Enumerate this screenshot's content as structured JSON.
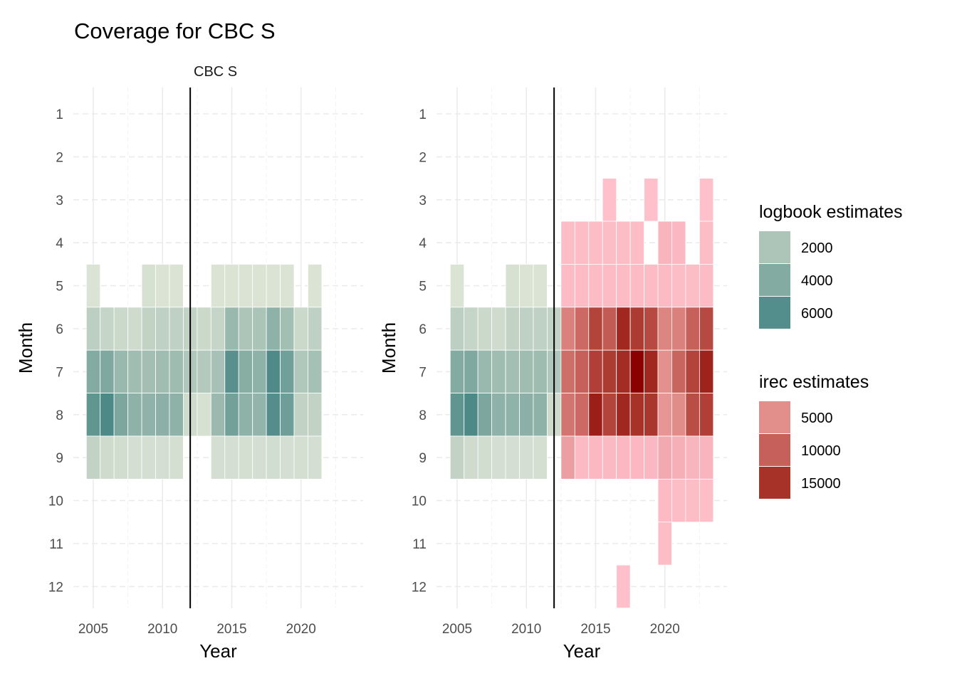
{
  "title": "Coverage for CBC S",
  "facet_label": "CBC S",
  "legends": {
    "logbook": {
      "title": "logbook estimates",
      "labels": [
        "2000",
        "4000",
        "6000"
      ],
      "colors": [
        "#adc5b9",
        "#84aba2",
        "#548e8c"
      ]
    },
    "irec": {
      "title": "irec estimates",
      "labels": [
        "5000",
        "10000",
        "15000"
      ],
      "colors": [
        "#e28f8c",
        "#c6605a",
        "#a63228"
      ]
    }
  },
  "chart_data": [
    {
      "type": "heatmap",
      "panel": "left",
      "facet": "CBC S",
      "xlabel": "Year",
      "ylabel": "Month",
      "x_ticks": [
        2005,
        2010,
        2015,
        2020
      ],
      "y_ticks": [
        1,
        2,
        3,
        4,
        5,
        6,
        7,
        8,
        9,
        10,
        11,
        12
      ],
      "y_reversed": true,
      "vline_year": 2012,
      "series": [
        {
          "name": "logbook estimates",
          "cells": [
            [
              2005,
              5,
              500
            ],
            [
              2005,
              6,
              1500
            ],
            [
              2005,
              7,
              4000
            ],
            [
              2005,
              8,
              5500
            ],
            [
              2005,
              9,
              1300
            ],
            [
              2006,
              6,
              1200
            ],
            [
              2006,
              7,
              4200
            ],
            [
              2006,
              8,
              6300
            ],
            [
              2006,
              9,
              900
            ],
            [
              2007,
              6,
              1000
            ],
            [
              2007,
              7,
              3000
            ],
            [
              2007,
              8,
              4300
            ],
            [
              2007,
              9,
              800
            ],
            [
              2008,
              6,
              900
            ],
            [
              2008,
              7,
              2600
            ],
            [
              2008,
              8,
              3500
            ],
            [
              2008,
              9,
              700
            ],
            [
              2009,
              5,
              600
            ],
            [
              2009,
              6,
              1300
            ],
            [
              2009,
              7,
              2500
            ],
            [
              2009,
              8,
              3400
            ],
            [
              2009,
              9,
              700
            ],
            [
              2010,
              5,
              500
            ],
            [
              2010,
              6,
              1400
            ],
            [
              2010,
              7,
              2600
            ],
            [
              2010,
              8,
              3600
            ],
            [
              2010,
              9,
              700
            ],
            [
              2011,
              5,
              500
            ],
            [
              2011,
              6,
              1400
            ],
            [
              2011,
              7,
              2700
            ],
            [
              2011,
              8,
              3500
            ],
            [
              2011,
              9,
              700
            ],
            [
              2012,
              6,
              1300
            ],
            [
              2012,
              7,
              1900
            ],
            [
              2012,
              8,
              900
            ],
            [
              2013,
              6,
              1000
            ],
            [
              2013,
              7,
              1800
            ],
            [
              2013,
              8,
              600
            ],
            [
              2014,
              5,
              500
            ],
            [
              2014,
              6,
              1200
            ],
            [
              2014,
              7,
              2300
            ],
            [
              2014,
              8,
              2900
            ],
            [
              2014,
              9,
              700
            ],
            [
              2015,
              5,
              500
            ],
            [
              2015,
              6,
              3000
            ],
            [
              2015,
              7,
              5800
            ],
            [
              2015,
              8,
              4700
            ],
            [
              2015,
              9,
              700
            ],
            [
              2016,
              5,
              500
            ],
            [
              2016,
              6,
              2000
            ],
            [
              2016,
              7,
              3800
            ],
            [
              2016,
              8,
              3500
            ],
            [
              2016,
              9,
              700
            ],
            [
              2017,
              5,
              500
            ],
            [
              2017,
              6,
              2100
            ],
            [
              2017,
              7,
              3500
            ],
            [
              2017,
              8,
              3300
            ],
            [
              2017,
              9,
              700
            ],
            [
              2018,
              5,
              500
            ],
            [
              2018,
              6,
              3500
            ],
            [
              2018,
              7,
              6200
            ],
            [
              2018,
              8,
              6000
            ],
            [
              2018,
              9,
              800
            ],
            [
              2019,
              5,
              500
            ],
            [
              2019,
              6,
              2500
            ],
            [
              2019,
              7,
              4800
            ],
            [
              2019,
              8,
              4900
            ],
            [
              2019,
              9,
              700
            ],
            [
              2020,
              6,
              1000
            ],
            [
              2020,
              7,
              1900
            ],
            [
              2020,
              8,
              1300
            ],
            [
              2020,
              9,
              700
            ],
            [
              2021,
              5,
              500
            ],
            [
              2021,
              6,
              1400
            ],
            [
              2021,
              7,
              2400
            ],
            [
              2021,
              8,
              1300
            ],
            [
              2021,
              9,
              700
            ]
          ]
        }
      ]
    },
    {
      "type": "heatmap",
      "panel": "right",
      "xlabel": "Year",
      "ylabel": "Month",
      "x_ticks": [
        2005,
        2010,
        2015,
        2020
      ],
      "y_ticks": [
        1,
        2,
        3,
        4,
        5,
        6,
        7,
        8,
        9,
        10,
        11,
        12
      ],
      "y_reversed": true,
      "vline_year": 2012,
      "series": [
        {
          "name": "logbook estimates",
          "cells": [
            [
              2005,
              5,
              500
            ],
            [
              2005,
              6,
              1500
            ],
            [
              2005,
              7,
              4000
            ],
            [
              2005,
              8,
              5500
            ],
            [
              2005,
              9,
              1300
            ],
            [
              2006,
              6,
              1200
            ],
            [
              2006,
              7,
              4200
            ],
            [
              2006,
              8,
              6300
            ],
            [
              2006,
              9,
              900
            ],
            [
              2007,
              6,
              1000
            ],
            [
              2007,
              7,
              3000
            ],
            [
              2007,
              8,
              4300
            ],
            [
              2007,
              9,
              800
            ],
            [
              2008,
              6,
              900
            ],
            [
              2008,
              7,
              2600
            ],
            [
              2008,
              8,
              3500
            ],
            [
              2008,
              9,
              700
            ],
            [
              2009,
              5,
              600
            ],
            [
              2009,
              6,
              1300
            ],
            [
              2009,
              7,
              2500
            ],
            [
              2009,
              8,
              3400
            ],
            [
              2009,
              9,
              700
            ],
            [
              2010,
              5,
              500
            ],
            [
              2010,
              6,
              1400
            ],
            [
              2010,
              7,
              2600
            ],
            [
              2010,
              8,
              3600
            ],
            [
              2010,
              9,
              700
            ],
            [
              2011,
              5,
              500
            ],
            [
              2011,
              6,
              1400
            ],
            [
              2011,
              7,
              2700
            ],
            [
              2011,
              8,
              3500
            ],
            [
              2011,
              9,
              700
            ],
            [
              2012,
              6,
              1300
            ],
            [
              2012,
              7,
              1900
            ],
            [
              2012,
              8,
              900
            ]
          ]
        },
        {
          "name": "irec estimates",
          "cells": [
            [
              2013,
              4,
              800
            ],
            [
              2013,
              5,
              900
            ],
            [
              2013,
              6,
              6500
            ],
            [
              2013,
              7,
              8500
            ],
            [
              2013,
              8,
              7800
            ],
            [
              2013,
              9,
              3500
            ],
            [
              2014,
              4,
              800
            ],
            [
              2014,
              5,
              900
            ],
            [
              2014,
              6,
              9000
            ],
            [
              2014,
              7,
              10000
            ],
            [
              2014,
              8,
              9000
            ],
            [
              2014,
              9,
              1000
            ],
            [
              2015,
              4,
              800
            ],
            [
              2015,
              5,
              900
            ],
            [
              2015,
              6,
              13000
            ],
            [
              2015,
              7,
              13500
            ],
            [
              2015,
              8,
              17000
            ],
            [
              2015,
              9,
              1200
            ],
            [
              2016,
              3,
              500
            ],
            [
              2016,
              4,
              800
            ],
            [
              2016,
              5,
              900
            ],
            [
              2016,
              6,
              10500
            ],
            [
              2016,
              7,
              14000
            ],
            [
              2016,
              8,
              13000
            ],
            [
              2016,
              9,
              1100
            ],
            [
              2017,
              4,
              800
            ],
            [
              2017,
              5,
              900
            ],
            [
              2017,
              6,
              16000
            ],
            [
              2017,
              7,
              15500
            ],
            [
              2017,
              8,
              16000
            ],
            [
              2017,
              9,
              1200
            ],
            [
              2017,
              12,
              500
            ],
            [
              2018,
              4,
              800
            ],
            [
              2018,
              5,
              900
            ],
            [
              2018,
              6,
              14000
            ],
            [
              2018,
              7,
              20000
            ],
            [
              2018,
              8,
              15000
            ],
            [
              2018,
              9,
              1200
            ],
            [
              2019,
              3,
              500
            ],
            [
              2019,
              5,
              900
            ],
            [
              2019,
              6,
              12500
            ],
            [
              2019,
              7,
              16000
            ],
            [
              2019,
              8,
              14500
            ],
            [
              2019,
              9,
              1200
            ],
            [
              2020,
              4,
              1500
            ],
            [
              2020,
              5,
              1000
            ],
            [
              2020,
              6,
              6000
            ],
            [
              2020,
              7,
              4800
            ],
            [
              2020,
              8,
              4300
            ],
            [
              2020,
              9,
              2500
            ],
            [
              2020,
              10,
              1000
            ],
            [
              2020,
              11,
              800
            ],
            [
              2021,
              4,
              1200
            ],
            [
              2021,
              5,
              800
            ],
            [
              2021,
              6,
              6500
            ],
            [
              2021,
              7,
              9500
            ],
            [
              2021,
              8,
              5300
            ],
            [
              2021,
              9,
              2000
            ],
            [
              2021,
              10,
              800
            ],
            [
              2022,
              5,
              800
            ],
            [
              2022,
              6,
              10000
            ],
            [
              2022,
              7,
              13000
            ],
            [
              2022,
              8,
              12000
            ],
            [
              2022,
              9,
              1500
            ],
            [
              2022,
              10,
              800
            ],
            [
              2023,
              3,
              500
            ],
            [
              2023,
              4,
              800
            ],
            [
              2023,
              5,
              900
            ],
            [
              2023,
              6,
              12500
            ],
            [
              2023,
              7,
              16500
            ],
            [
              2023,
              8,
              13500
            ],
            [
              2023,
              9,
              1500
            ],
            [
              2023,
              10,
              700
            ]
          ]
        }
      ]
    }
  ]
}
